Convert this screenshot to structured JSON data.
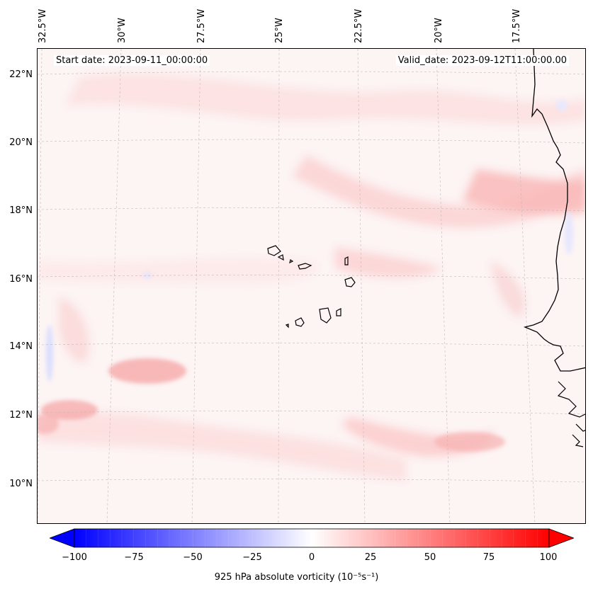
{
  "map": {
    "start_date": "Start date: 2023-09-11_00:00:00",
    "valid_date": "Valid_date: 2023-09-12T11:00:00.00",
    "lon_labels": [
      "32.5°W",
      "30°W",
      "27.5°W",
      "25°W",
      "22.5°W",
      "20°W",
      "17.5°W"
    ],
    "lat_labels": [
      "22°N",
      "20°N",
      "18°N",
      "16°N",
      "14°N",
      "12°N",
      "10°N"
    ],
    "coastline_color": "#000000",
    "gridline_color": "#bbbbbb"
  },
  "colorbar": {
    "label": "925 hPa absolute vorticity (10⁻⁵s⁻¹)",
    "ticks": [
      "−100",
      "−75",
      "−50",
      "−25",
      "0",
      "25",
      "50",
      "75",
      "100"
    ],
    "min": -100,
    "max": 100,
    "colormap": "bwr",
    "min_color": "#0000ff",
    "mid_color": "#ffffff",
    "max_color": "#ff0000"
  }
}
